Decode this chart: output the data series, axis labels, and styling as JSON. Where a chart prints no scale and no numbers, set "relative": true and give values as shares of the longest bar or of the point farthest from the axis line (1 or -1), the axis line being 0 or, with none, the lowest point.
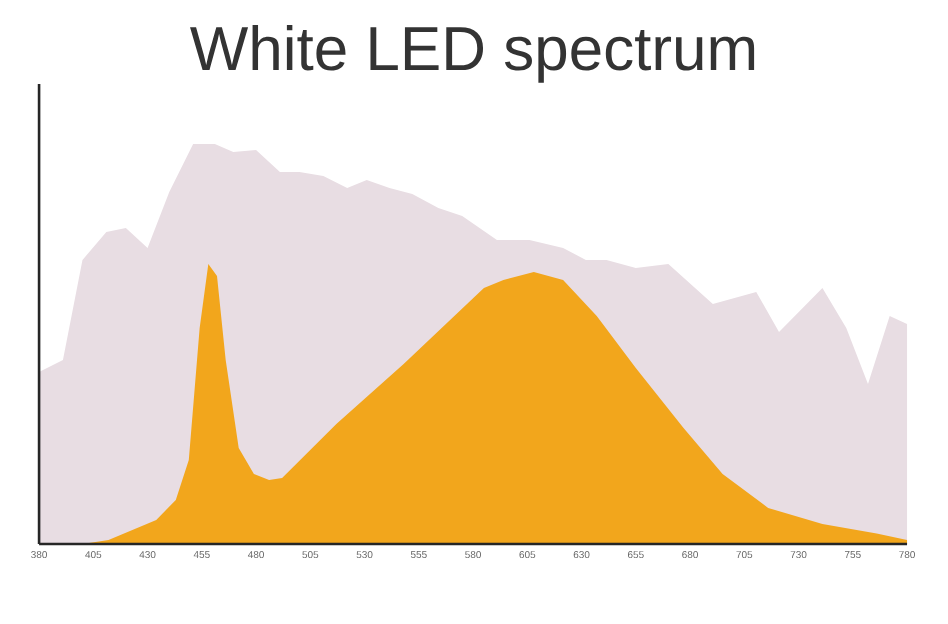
{
  "chart_data": {
    "type": "area",
    "title": "White LED spectrum",
    "relative": true,
    "xlim": [
      380,
      780
    ],
    "xticks": [
      380,
      405,
      430,
      455,
      480,
      505,
      530,
      555,
      580,
      605,
      630,
      655,
      680,
      705,
      730,
      755,
      780
    ],
    "series": [
      {
        "color": "#e8dde3",
        "x": [
          380,
          391,
          400,
          411,
          420,
          430,
          440,
          451,
          461,
          469.5,
          480,
          491,
          500,
          511,
          522,
          531,
          541.5,
          552,
          564,
          575,
          591,
          606,
          621.5,
          632,
          641.5,
          655,
          670,
          690.5,
          710.5,
          721,
          741,
          752,
          762,
          772,
          780
        ],
        "values": [
          0.43,
          0.46,
          0.71,
          0.78,
          0.79,
          0.74,
          0.88,
          1.0,
          1.0,
          0.98,
          0.985,
          0.93,
          0.93,
          0.92,
          0.89,
          0.91,
          0.89,
          0.875,
          0.84,
          0.82,
          0.76,
          0.76,
          0.74,
          0.71,
          0.71,
          0.69,
          0.7,
          0.6,
          0.63,
          0.53,
          0.64,
          0.54,
          0.4,
          0.57,
          0.55
        ]
      },
      {
        "color": "#f2a61c",
        "x": [
          400,
          412,
          434,
          443,
          449,
          454,
          458,
          462,
          466,
          472,
          479,
          486,
          492,
          517,
          548,
          585,
          594,
          608,
          621.5,
          637,
          655,
          677,
          695,
          716,
          741,
          766,
          780
        ],
        "values": [
          0,
          0.01,
          0.06,
          0.11,
          0.21,
          0.54,
          0.7,
          0.67,
          0.46,
          0.24,
          0.175,
          0.16,
          0.165,
          0.3,
          0.45,
          0.64,
          0.66,
          0.68,
          0.66,
          0.57,
          0.44,
          0.29,
          0.175,
          0.09,
          0.05,
          0.026,
          0.01
        ]
      }
    ]
  }
}
